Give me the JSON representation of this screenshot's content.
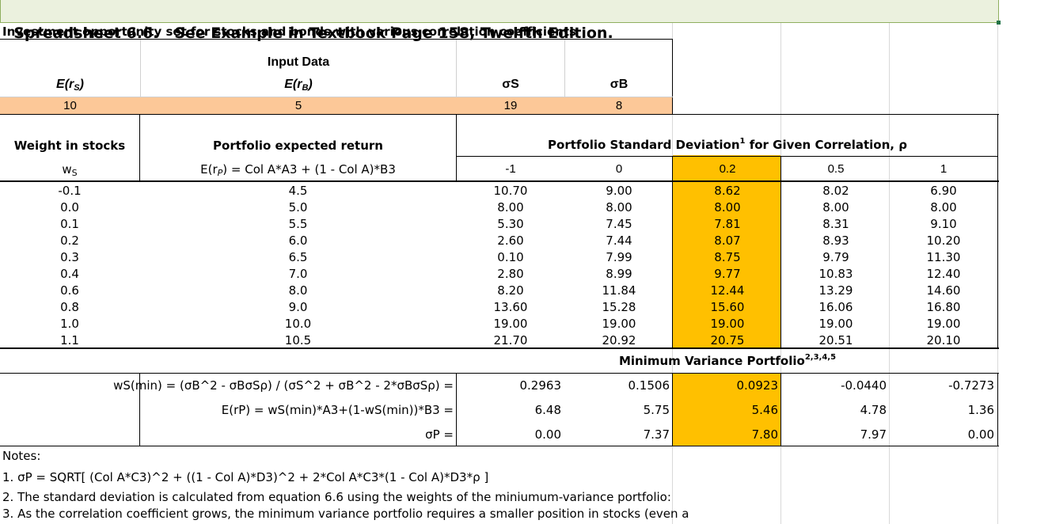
{
  "title": "Spreadsheet 6.6.   See Example in Textbook Page 158, Twelfth Edition.",
  "subtitle": "Investment opportunity set for stocks and bonds with various correlation coefficients",
  "input_data": {
    "heading": "Input Data",
    "labels": {
      "ers": "E(r",
      "ers_sub": "S",
      "erb": "E(r",
      "erb_sub": "B",
      "close": ")",
      "sigma_s": "σS",
      "sigma_b": "σB"
    },
    "values": {
      "ers": "10",
      "erb": "5",
      "sigma_s": "19",
      "sigma_b": "8"
    }
  },
  "table": {
    "col_weight": "Weight in stocks",
    "col_return": "Portfolio expected return",
    "col_sd": "Portfolio Standard Deviation",
    "col_sd_sup": "1",
    "col_sd_tail": " for Given Correlation, ρ",
    "ws_label": "w",
    "ws_sub": "S",
    "formula_pre": "E(r",
    "formula_sub": "P",
    "formula_post": ") = Col A*A3 + (1 - Col A)*B3",
    "correlations": [
      "-1",
      "0",
      "0.2",
      "0.5",
      "1"
    ],
    "rows": [
      {
        "w": "-0.1",
        "er": "4.5",
        "sd": [
          "10.70",
          "9.00",
          "8.62",
          "8.02",
          "6.90"
        ]
      },
      {
        "w": "0.0",
        "er": "5.0",
        "sd": [
          "8.00",
          "8.00",
          "8.00",
          "8.00",
          "8.00"
        ]
      },
      {
        "w": "0.1",
        "er": "5.5",
        "sd": [
          "5.30",
          "7.45",
          "7.81",
          "8.31",
          "9.10"
        ]
      },
      {
        "w": "0.2",
        "er": "6.0",
        "sd": [
          "2.60",
          "7.44",
          "8.07",
          "8.93",
          "10.20"
        ]
      },
      {
        "w": "0.3",
        "er": "6.5",
        "sd": [
          "0.10",
          "7.99",
          "8.75",
          "9.79",
          "11.30"
        ]
      },
      {
        "w": "0.4",
        "er": "7.0",
        "sd": [
          "2.80",
          "8.99",
          "9.77",
          "10.83",
          "12.40"
        ]
      },
      {
        "w": "0.6",
        "er": "8.0",
        "sd": [
          "8.20",
          "11.84",
          "12.44",
          "13.29",
          "14.60"
        ]
      },
      {
        "w": "0.8",
        "er": "9.0",
        "sd": [
          "13.60",
          "15.28",
          "15.60",
          "16.06",
          "16.80"
        ]
      },
      {
        "w": "1.0",
        "er": "10.0",
        "sd": [
          "19.00",
          "19.00",
          "19.00",
          "19.00",
          "19.00"
        ]
      },
      {
        "w": "1.1",
        "er": "10.5",
        "sd": [
          "21.70",
          "20.92",
          "20.75",
          "20.51",
          "20.10"
        ]
      }
    ]
  },
  "min_variance": {
    "heading": "Minimum Variance Portfolio",
    "heading_sup": "2,3,4,5",
    "rows": [
      {
        "label": "wS(min) = (σB^2 - σBσSρ) / (σS^2 + σB^2 - 2*σBσSρ) =",
        "values": [
          "0.2963",
          "0.1506",
          "0.0923",
          "-0.0440",
          "-0.7273"
        ]
      },
      {
        "label": "E(rP) = wS(min)*A3+(1-wS(min))*B3 =",
        "values": [
          "6.48",
          "5.75",
          "5.46",
          "4.78",
          "1.36"
        ]
      },
      {
        "label": "σP =",
        "values": [
          "0.00",
          "7.37",
          "7.80",
          "7.97",
          "0.00"
        ]
      }
    ]
  },
  "notes": {
    "heading": "Notes:",
    "items": [
      "1.  σP = SQRT[ (Col A*C3)^2 + ((1 - Col A)*D3)^2 + 2*Col A*C3*(1 - Col A)*D3*ρ ]",
      "2.  The standard deviation is calculated from equation 6.6 using the weights of the miniumum-variance portfolio:",
      "3.  As the correlation coefficient grows, the minimum variance portfolio requires a smaller position in stocks (even a"
    ]
  },
  "colors": {
    "highlight": "#ffc000",
    "input_row": "#fcc898",
    "title_bg": "#ebf1de"
  }
}
